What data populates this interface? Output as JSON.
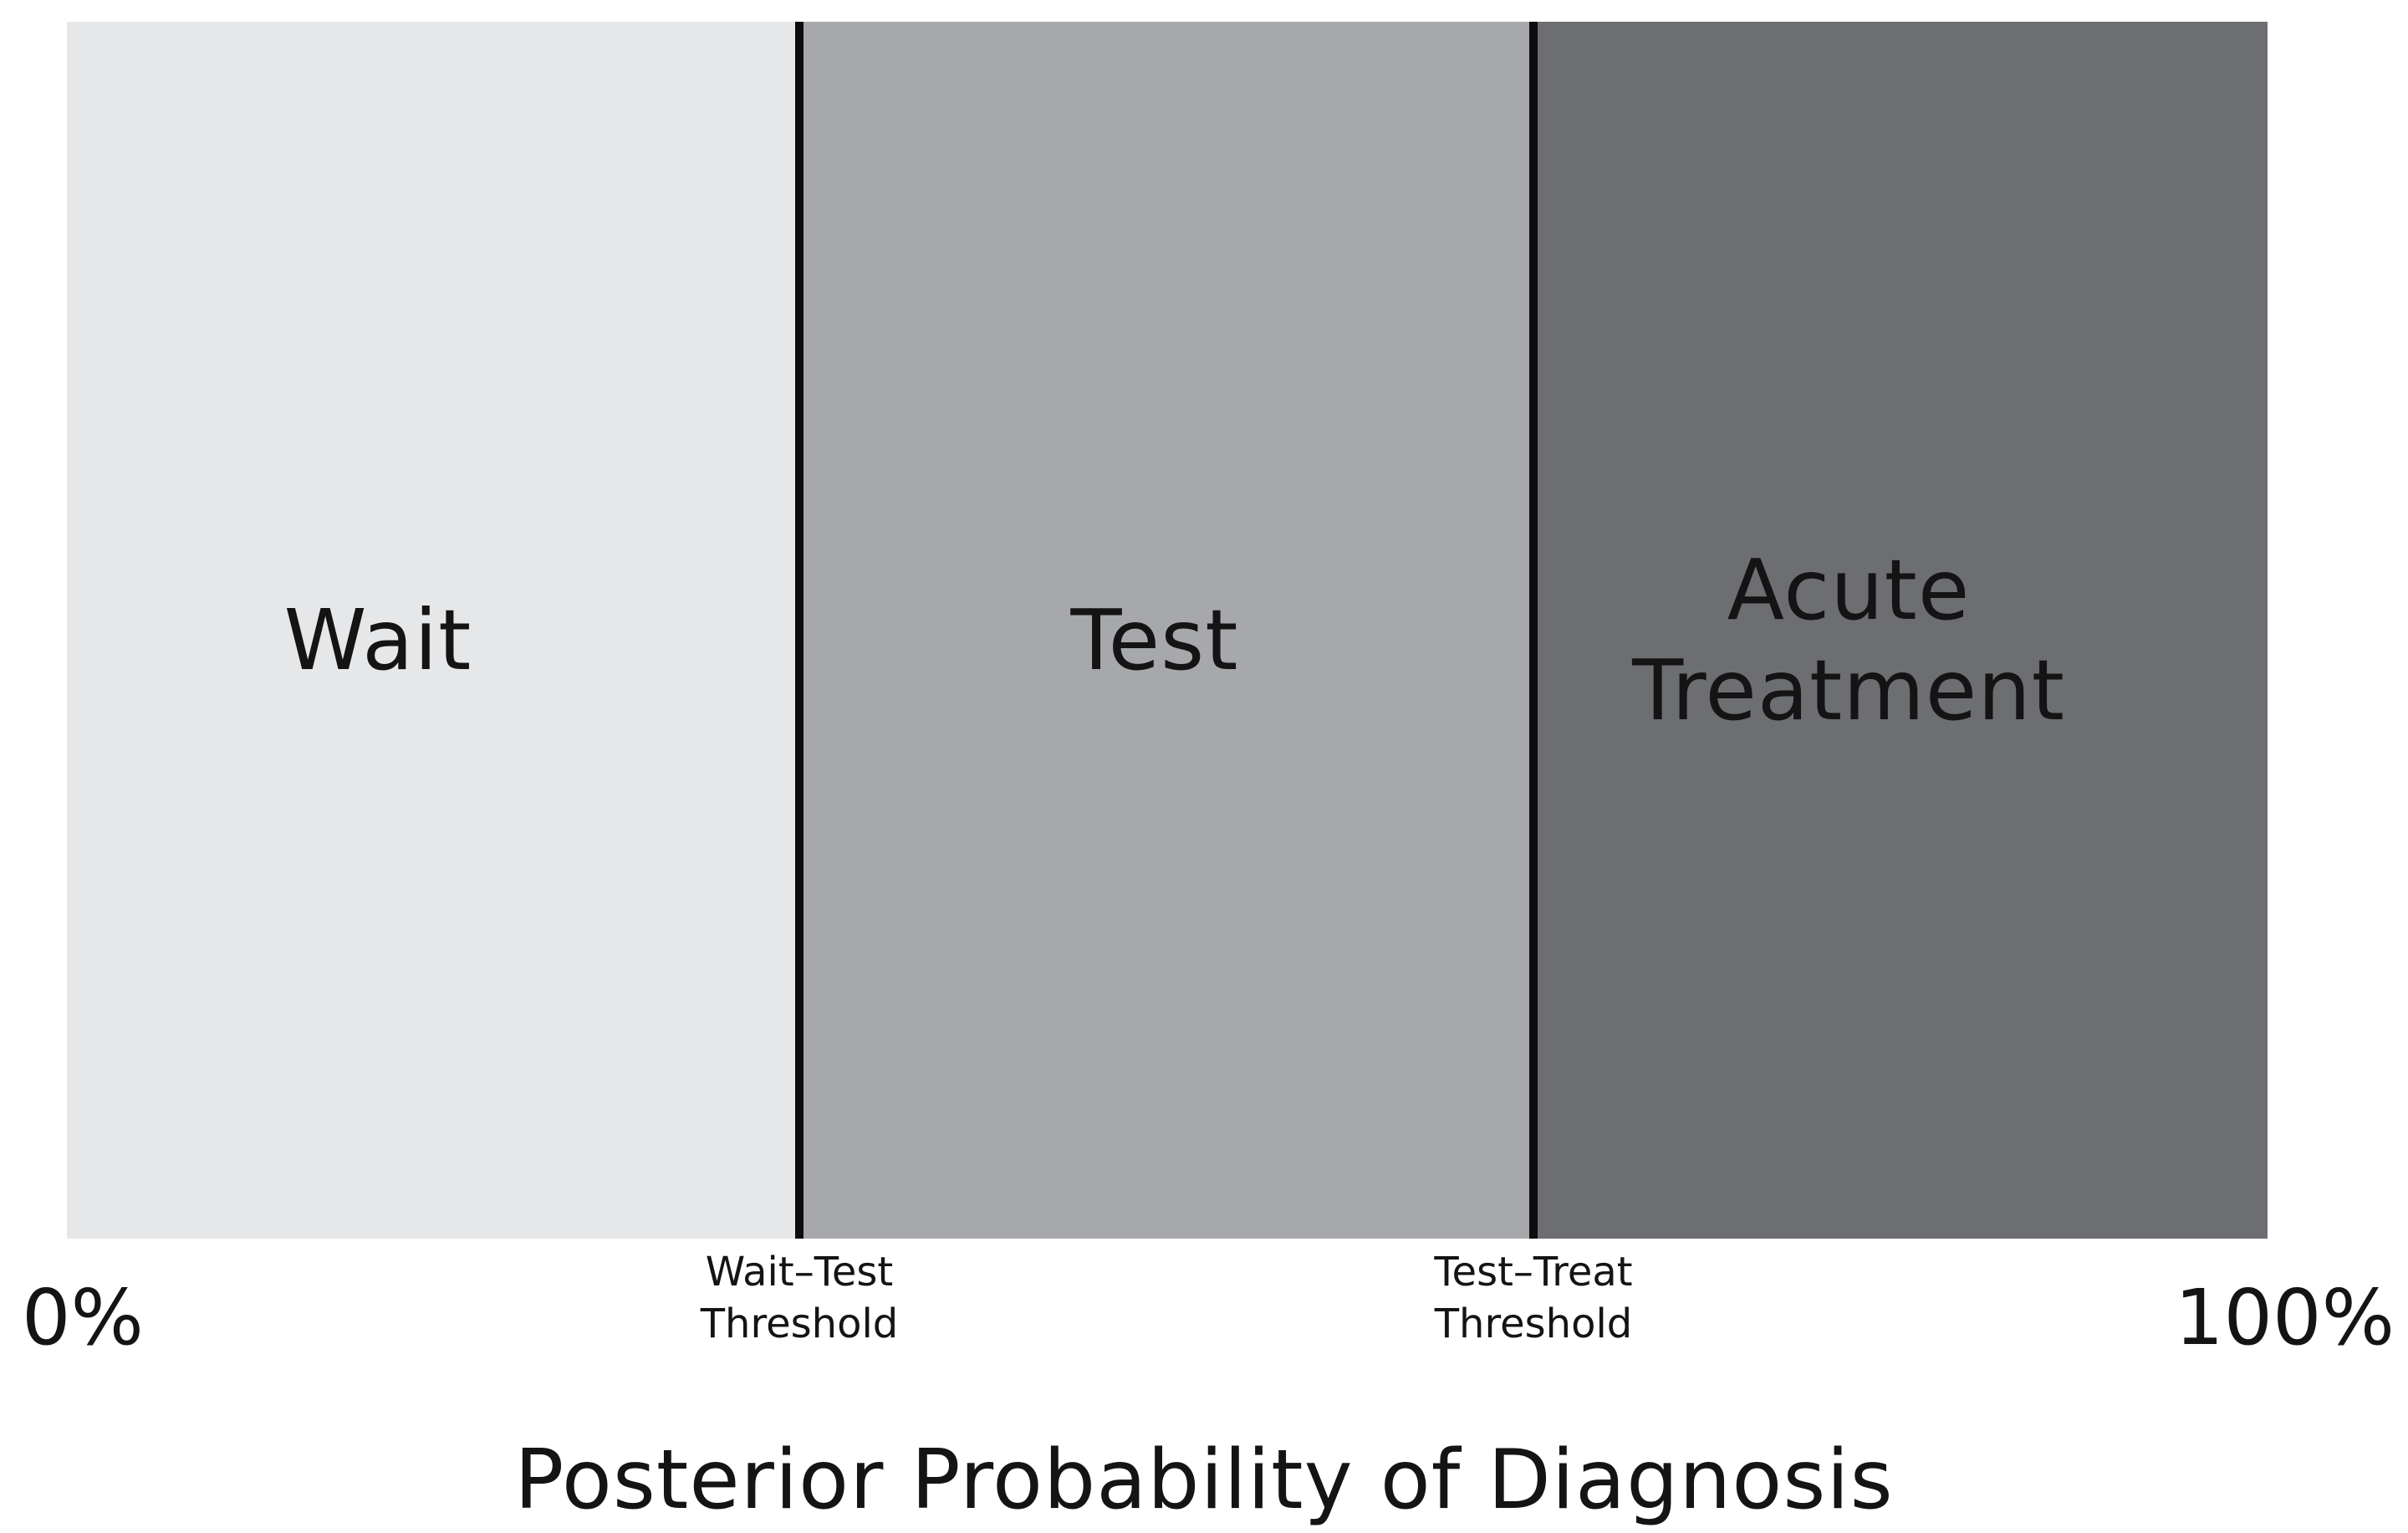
{
  "zones": [
    {
      "label": "Wait",
      "color": "#e6e7e9"
    },
    {
      "label": "Test",
      "color": "#a7a8ab"
    },
    {
      "label": "Acute\nTreatment",
      "color": "#6d6e71"
    }
  ],
  "thresholds": [
    {
      "label": "Wait–Test\nThreshold"
    },
    {
      "label": "Test–Treat\nThreshold"
    }
  ],
  "axis": {
    "start_label": "0%",
    "end_label": "100%",
    "title": "Posterior Probability of Diagnosis"
  },
  "colors": {
    "threshold_line": "#0d0d0d",
    "text": "#141414",
    "background": "#ffffff"
  }
}
